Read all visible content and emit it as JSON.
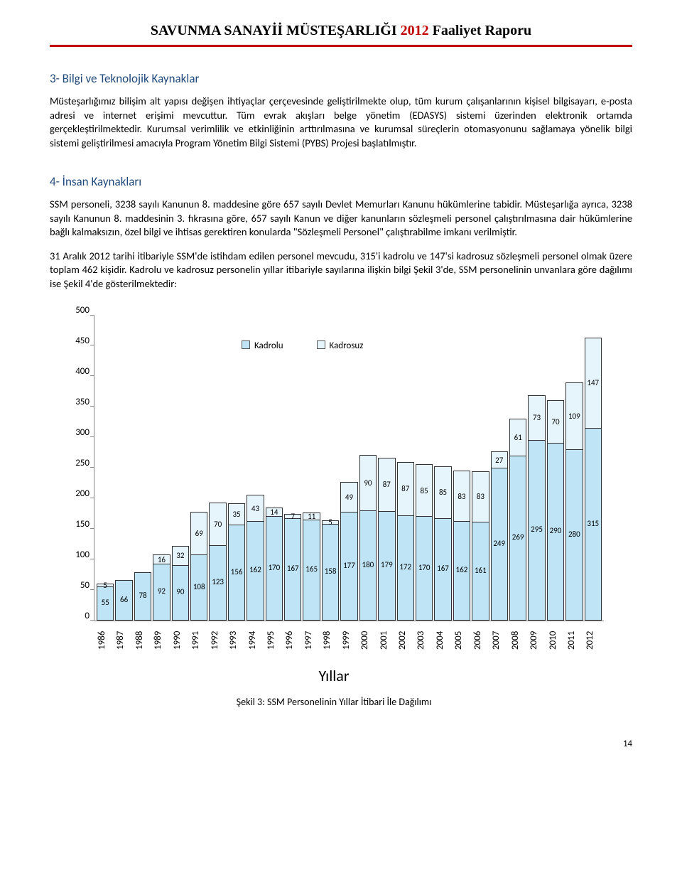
{
  "header": {
    "black_prefix": "SAVUNMA SANAYİİ MÜSTEŞARLIĞI",
    "red_year": "2012",
    "black_suffix": "Faaliyet Raporu"
  },
  "section3": {
    "title": "3- Bilgi ve Teknolojik Kaynaklar",
    "para": "Müsteşarlığımız bilişim alt yapısı değişen ihtiyaçlar çerçevesinde geliştirilmekte olup, tüm kurum çalışanlarının kişisel bilgisayarı, e-posta adresi ve internet erişimi mevcuttur. Tüm evrak akışları belge yönetim (EDASYS) sistemi üzerinden elektronik ortamda gerçekleştirilmektedir. Kurumsal verimlilik ve etkinliğinin arttırılmasına ve kurumsal süreçlerin otomasyonunu sağlamaya yönelik bilgi sistemi geliştirilmesi amacıyla Program Yönetim Bilgi Sistemi (PYBS) Projesi başlatılmıştır."
  },
  "section4": {
    "title": "4- İnsan Kaynakları",
    "para1": "SSM personeli, 3238 sayılı Kanunun 8. maddesine göre 657 sayılı Devlet Memurları Kanunu hükümlerine tabidir. Müsteşarlığa ayrıca, 3238 sayılı Kanunun 8. maddesinin 3. fıkrasına göre, 657 sayılı Kanun ve diğer kanunların sözleşmeli personel çalıştırılmasına dair hükümlerine bağlı kalmaksızın, özel bilgi ve ihtisas gerektiren konularda \"Sözleşmeli Personel\" çalıştırabilme imkanı verilmiştir.",
    "para2": "31 Aralık 2012 tarihi itibariyle SSM'de istihdam edilen personel mevcudu, 315'i kadrolu ve 147'si kadrosuz sözleşmeli personel olmak üzere toplam 462 kişidir. Kadrolu ve kadrosuz personelin yıllar itibariyle sayılarına ilişkin bilgi Şekil 3'de, SSM personelinin unvanlara göre dağılımı ise Şekil 4'de gösterilmektedir:"
  },
  "chart": {
    "type": "stacked-bar",
    "legend": {
      "a": "Kadrolu",
      "b": "Kadrosuz"
    },
    "colors": {
      "kadrolu": "#bfe4f5",
      "kadrosuz": "#e6f4fb",
      "border": "#333333",
      "grid": "#888888",
      "background": "#ffffff"
    },
    "ylim": [
      0,
      500
    ],
    "ytick_step": 50,
    "x_title": "Yıllar",
    "years": [
      "1986",
      "1987",
      "1988",
      "1989",
      "1990",
      "1991",
      "1992",
      "1993",
      "1994",
      "1995",
      "1996",
      "1997",
      "1998",
      "1999",
      "2000",
      "2001",
      "2002",
      "2003",
      "2004",
      "2005",
      "2006",
      "2007",
      "2008",
      "2009",
      "2010",
      "2011",
      "2012"
    ],
    "kadrolu": [
      55,
      66,
      78,
      92,
      90,
      108,
      123,
      156,
      162,
      170,
      167,
      165,
      158,
      177,
      180,
      179,
      172,
      170,
      167,
      162,
      161,
      249,
      269,
      295,
      290,
      280,
      315
    ],
    "kadrosuz": [
      5,
      0,
      0,
      16,
      32,
      69,
      70,
      35,
      43,
      14,
      7,
      11,
      5,
      49,
      90,
      87,
      87,
      85,
      85,
      83,
      83,
      27,
      61,
      73,
      70,
      109,
      147
    ],
    "caption": "Şekil 3: SSM Personelinin Yıllar İtibari İle Dağılımı"
  },
  "page_num": "14"
}
